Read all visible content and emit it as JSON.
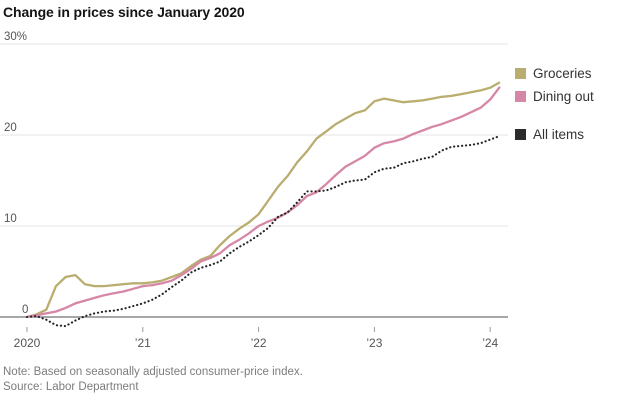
{
  "title": "Change in prices since January 2020",
  "legend": {
    "items": [
      {
        "label": "Groceries",
        "color": "#b9ad6f"
      },
      {
        "label": "Dining out",
        "color": "#d687a7"
      },
      {
        "label": "All items",
        "color": "#2b2b2b"
      }
    ]
  },
  "notes": {
    "note": "Note: Based on seasonally adjusted consumer-price index.",
    "source": "Source: Labor Department"
  },
  "chart_data": {
    "type": "line",
    "title": "Change in prices since January 2020",
    "unit": "percent change since January 2020",
    "x_range": "monthly, January 2020 to February 2024",
    "ylim": [
      -2,
      30
    ],
    "grid": "horizontal",
    "legend_position": "right",
    "x_ticks": [
      {
        "month_index": 0,
        "label": "2020"
      },
      {
        "month_index": 12,
        "label": "’21"
      },
      {
        "month_index": 24,
        "label": "’22"
      },
      {
        "month_index": 36,
        "label": "’23"
      },
      {
        "month_index": 48,
        "label": "’24"
      }
    ],
    "y_ticks": [
      {
        "value": 0,
        "label": "0"
      },
      {
        "value": 10,
        "label": "10"
      },
      {
        "value": 20,
        "label": "20"
      },
      {
        "value": 30,
        "label": "30%"
      }
    ],
    "series": [
      {
        "name": "Groceries",
        "color": "#b9ad6f",
        "style": "solid",
        "values": [
          0,
          0.3,
          0.8,
          3.4,
          4.4,
          4.6,
          3.6,
          3.4,
          3.4,
          3.5,
          3.6,
          3.7,
          3.7,
          3.8,
          4.0,
          4.4,
          4.8,
          5.6,
          6.3,
          6.7,
          7.9,
          8.9,
          9.7,
          10.4,
          11.3,
          12.8,
          14.3,
          15.5,
          17.0,
          18.2,
          19.6,
          20.4,
          21.2,
          21.8,
          22.4,
          22.7,
          23.7,
          24.0,
          23.8,
          23.6,
          23.7,
          23.8,
          24.0,
          24.2,
          24.3,
          24.5,
          24.7,
          24.9,
          25.2,
          25.8
        ]
      },
      {
        "name": "Dining out",
        "color": "#d687a7",
        "style": "solid",
        "values": [
          0,
          0.2,
          0.4,
          0.6,
          1.0,
          1.5,
          1.8,
          2.1,
          2.4,
          2.6,
          2.8,
          3.1,
          3.4,
          3.5,
          3.7,
          4.0,
          4.6,
          5.3,
          6.1,
          6.5,
          7.0,
          7.9,
          8.5,
          9.2,
          10.0,
          10.5,
          10.9,
          11.5,
          12.3,
          13.3,
          13.7,
          14.6,
          15.6,
          16.5,
          17.1,
          17.7,
          18.6,
          19.1,
          19.3,
          19.6,
          20.1,
          20.5,
          20.9,
          21.2,
          21.6,
          22.0,
          22.5,
          23.0,
          23.9,
          25.3
        ]
      },
      {
        "name": "All items",
        "color": "#232323",
        "style": "dotted",
        "values": [
          0,
          0.1,
          -0.3,
          -0.9,
          -1.0,
          -0.4,
          0.1,
          0.4,
          0.6,
          0.7,
          0.9,
          1.2,
          1.5,
          1.9,
          2.5,
          3.3,
          4.0,
          4.9,
          5.4,
          5.7,
          6.1,
          7.0,
          7.7,
          8.3,
          9.0,
          9.8,
          11.0,
          11.5,
          12.6,
          13.8,
          13.8,
          13.9,
          14.3,
          14.8,
          15.0,
          15.1,
          15.9,
          16.3,
          16.4,
          16.9,
          17.1,
          17.4,
          17.6,
          18.3,
          18.7,
          18.8,
          18.9,
          19.1,
          19.5,
          19.9
        ]
      }
    ]
  }
}
